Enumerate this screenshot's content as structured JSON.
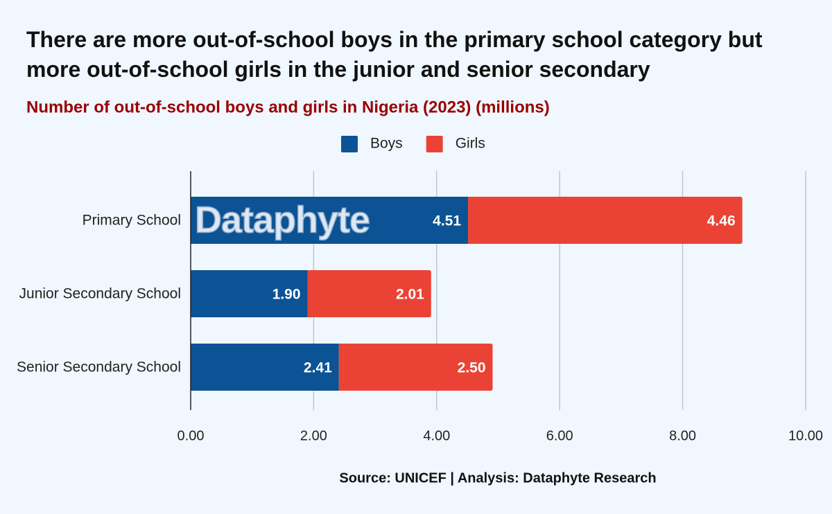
{
  "chart_data": {
    "type": "stacked-bar-horizontal",
    "title": "There are more out-of-school boys in the primary school category but more out-of-school girls in the junior and senior secondary",
    "subtitle": "Number of out-of-school boys and girls in Nigeria (2023) (millions)",
    "categories": [
      "Primary School",
      "Junior Secondary School",
      "Senior Secondary School"
    ],
    "series": [
      {
        "name": "Boys",
        "color": "#0b5394",
        "values": [
          4.51,
          1.9,
          2.41
        ],
        "value_labels": [
          "4.51",
          "1.90",
          "2.41"
        ]
      },
      {
        "name": "Girls",
        "color": "#ea4335",
        "values": [
          4.46,
          2.01,
          2.5
        ],
        "value_labels": [
          "4.46",
          "2.01",
          "2.50"
        ]
      }
    ],
    "xlim": [
      0,
      10
    ],
    "xticks": [
      {
        "value": 0,
        "label": "0.00"
      },
      {
        "value": 2,
        "label": "2.00"
      },
      {
        "value": 4,
        "label": "4.00"
      },
      {
        "value": 6,
        "label": "6.00"
      },
      {
        "value": 8,
        "label": "8.00"
      },
      {
        "value": 10,
        "label": "10.00"
      }
    ],
    "grid": true,
    "legend": "top",
    "watermark": "Dataphyte",
    "source": "Source: UNICEF | Analysis: Dataphyte Research"
  }
}
